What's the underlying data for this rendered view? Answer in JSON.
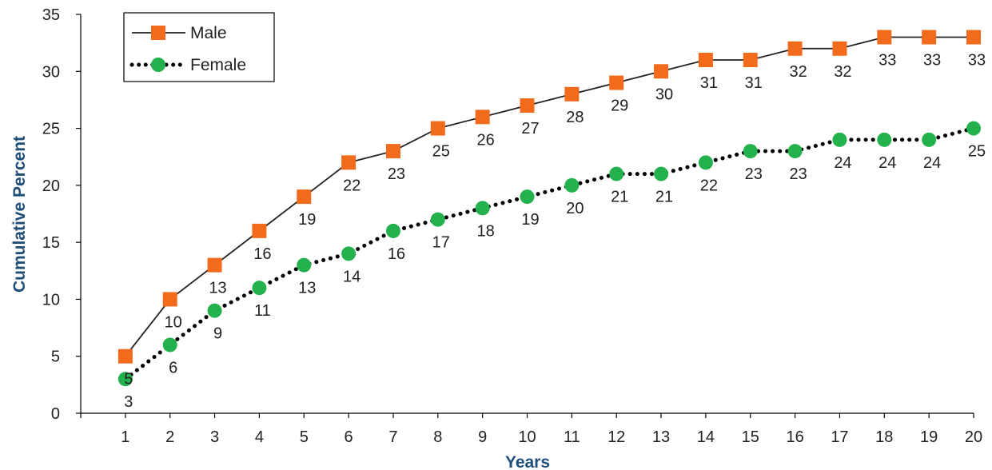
{
  "chart_data": {
    "type": "line",
    "title": "",
    "xlabel": "Years",
    "ylabel": "Cumulative Percent",
    "x": [
      1,
      2,
      3,
      4,
      5,
      6,
      7,
      8,
      9,
      10,
      11,
      12,
      13,
      14,
      15,
      16,
      17,
      18,
      19,
      20
    ],
    "ylim": [
      0,
      35
    ],
    "yticks": [
      0,
      5,
      10,
      15,
      20,
      25,
      30,
      35
    ],
    "grid": false,
    "legend_position": "top-left",
    "series": [
      {
        "name": "Male",
        "values": [
          5,
          10,
          13,
          16,
          19,
          22,
          23,
          25,
          26,
          27,
          28,
          29,
          30,
          31,
          31,
          32,
          32,
          33,
          33,
          33
        ],
        "color": "#f26b1d",
        "marker": "square",
        "line_style": "solid"
      },
      {
        "name": "Female",
        "values": [
          3,
          6,
          9,
          11,
          13,
          14,
          16,
          17,
          18,
          19,
          20,
          21,
          21,
          22,
          23,
          23,
          24,
          24,
          24,
          25
        ],
        "color": "#22b14c",
        "marker": "circle",
        "line_style": "dotted"
      }
    ]
  }
}
